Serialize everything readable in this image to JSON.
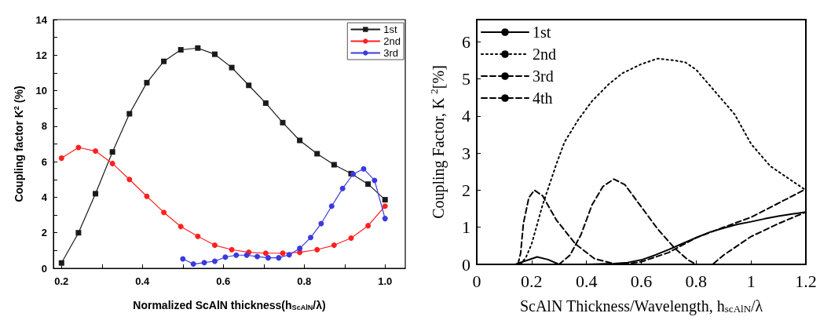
{
  "chart_data": [
    {
      "type": "line",
      "xlabel": "Normalized ScAlN thickness(h$_{ScAlN}$/λ)",
      "ylabel": "Coupling factor K$^{2}$ (%)",
      "xlim": [
        0.18,
        1.05
      ],
      "ylim": [
        0,
        14
      ],
      "xticks": [
        {
          "value": 0.2,
          "label": "0.2"
        },
        {
          "value": 0.3,
          "label": null
        },
        {
          "value": 0.4,
          "label": "0.4"
        },
        {
          "value": 0.5,
          "label": null
        },
        {
          "value": 0.6,
          "label": "0.6"
        },
        {
          "value": 0.7,
          "label": null
        },
        {
          "value": 0.8,
          "label": "0.8"
        },
        {
          "value": 0.9,
          "label": null
        },
        {
          "value": 1,
          "label": "1.0"
        }
      ],
      "yticks": [
        0,
        {
          "value": 1,
          "label": null
        },
        2,
        {
          "value": 3,
          "label": null
        },
        4,
        {
          "value": 5,
          "label": null
        },
        6,
        {
          "value": 7,
          "label": null
        },
        8,
        {
          "value": 9,
          "label": null
        },
        10,
        {
          "value": 11,
          "label": null
        },
        12,
        {
          "value": 13,
          "label": null
        },
        14
      ],
      "grid": false,
      "legend": "top right",
      "series": [
        {
          "name": "1st",
          "color": "#1a1a1a",
          "marker": "square",
          "x": [
            0.2,
            0.242,
            0.284,
            0.326,
            0.368,
            0.411,
            0.453,
            0.495,
            0.537,
            0.579,
            0.621,
            0.663,
            0.705,
            0.747,
            0.789,
            0.832,
            0.874,
            0.916,
            0.958,
            1.0
          ],
          "values": [
            0.3,
            2.0,
            4.2,
            6.55,
            8.7,
            10.45,
            11.65,
            12.3,
            12.4,
            12.05,
            11.3,
            10.3,
            9.3,
            8.2,
            7.2,
            6.45,
            5.83,
            5.33,
            4.74,
            3.86
          ]
        },
        {
          "name": "2nd",
          "color": "#ff2020",
          "marker": "circle",
          "x": [
            0.2,
            0.242,
            0.284,
            0.326,
            0.368,
            0.411,
            0.453,
            0.495,
            0.537,
            0.579,
            0.621,
            0.663,
            0.705,
            0.747,
            0.789,
            0.832,
            0.874,
            0.916,
            0.958,
            1.0
          ],
          "values": [
            6.2,
            6.8,
            6.6,
            5.9,
            5.0,
            4.05,
            3.15,
            2.35,
            1.8,
            1.3,
            1.05,
            0.9,
            0.85,
            0.85,
            0.9,
            1.05,
            1.3,
            1.7,
            2.4,
            3.5
          ]
        },
        {
          "name": "3rd",
          "color": "#3a3ae0",
          "marker": "circle",
          "x": [
            0.5,
            0.526,
            0.553,
            0.579,
            0.605,
            0.632,
            0.658,
            0.684,
            0.711,
            0.737,
            0.763,
            0.789,
            0.816,
            0.842,
            0.868,
            0.895,
            0.921,
            0.947,
            0.974,
            1.0
          ],
          "values": [
            0.53,
            0.24,
            0.32,
            0.4,
            0.63,
            0.74,
            0.74,
            0.66,
            0.59,
            0.59,
            0.76,
            1.12,
            1.73,
            2.52,
            3.5,
            4.49,
            5.3,
            5.6,
            4.95,
            2.8
          ]
        }
      ]
    },
    {
      "type": "line",
      "xlabel": "ScAlN Thickness/Wavelength, h$_{scAlN}$/λ",
      "ylabel": "Coupling Factor, K $^{2}$[%]",
      "xlim": [
        0,
        1.2
      ],
      "ylim": [
        0,
        6.6
      ],
      "xticks": [
        0,
        0.2,
        0.4,
        0.6,
        0.8,
        1,
        1.2
      ],
      "yticks": [
        0,
        1,
        2,
        3,
        4,
        5,
        6
      ],
      "grid": false,
      "legend": "top left",
      "series": [
        {
          "name": "1st",
          "color": "#000000",
          "line_style": "solid",
          "x": [
            0,
            0.14,
            0.18,
            0.22,
            0.26,
            0.3,
            0.4,
            0.5,
            0.55,
            0.6,
            0.65,
            0.7,
            0.75,
            0.8,
            0.85,
            0.9,
            0.95,
            1.0,
            1.05,
            1.1,
            1.15,
            1.2
          ],
          "values": [
            0,
            0,
            0.1,
            0.2,
            0.13,
            0,
            0,
            0.02,
            0.05,
            0.12,
            0.25,
            0.4,
            0.56,
            0.72,
            0.87,
            0.98,
            1.08,
            1.15,
            1.23,
            1.3,
            1.36,
            1.41
          ]
        },
        {
          "name": "2nd",
          "color": "#000000",
          "line_style": "dotted",
          "x": [
            0.16,
            0.18,
            0.2,
            0.24,
            0.29,
            0.32,
            0.37,
            0.42,
            0.48,
            0.53,
            0.6,
            0.66,
            0.72,
            0.76,
            0.8,
            0.87,
            0.94,
            1.0,
            1.07,
            1.14,
            1.2
          ],
          "values": [
            0,
            0.2,
            0.55,
            1.6,
            2.7,
            3.3,
            3.9,
            4.4,
            4.85,
            5.15,
            5.4,
            5.55,
            5.5,
            5.45,
            5.25,
            4.65,
            4.05,
            3.25,
            2.65,
            2.3,
            2.0
          ]
        },
        {
          "name": "3rd",
          "color": "#000000",
          "line_style": "dashed",
          "x": [
            0.15,
            0.16,
            0.17,
            0.19,
            0.21,
            0.24,
            0.29,
            0.36,
            0.43,
            0.5,
            0.55,
            0.6,
            0.7,
            0.8,
            0.9,
            1.0,
            1.1,
            1.2
          ],
          "values": [
            0,
            0.3,
            1.1,
            1.8,
            2.0,
            1.85,
            1.2,
            0.55,
            0.15,
            0.02,
            0.02,
            0.07,
            0.32,
            0.72,
            1.0,
            1.27,
            1.65,
            2.03
          ]
        },
        {
          "name": "4th",
          "color": "#000000",
          "line_style": "dashed",
          "x": [
            0.3,
            0.34,
            0.38,
            0.42,
            0.46,
            0.5,
            0.54,
            0.6,
            0.66,
            0.72,
            0.77,
            0.8,
            0.86,
            0.9,
            1.0,
            1.1,
            1.2
          ],
          "values": [
            0,
            0.25,
            0.8,
            1.6,
            2.1,
            2.3,
            2.15,
            1.55,
            0.95,
            0.45,
            0.12,
            0,
            0,
            0.25,
            0.75,
            1.1,
            1.41
          ]
        }
      ]
    }
  ]
}
